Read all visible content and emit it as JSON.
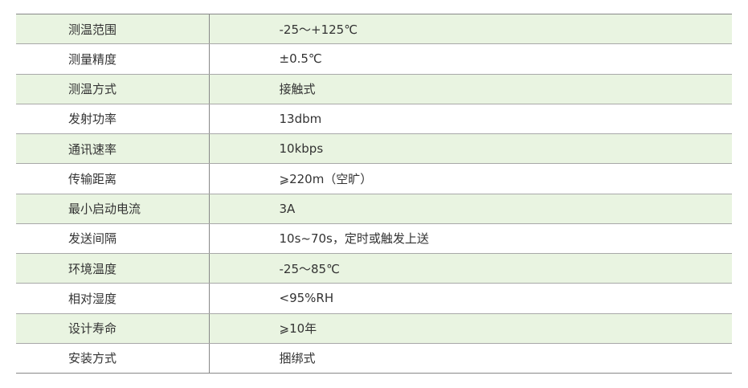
{
  "colors": {
    "alt_row": "#e9f4e1",
    "border": "#a8a8a8",
    "text": "#333333"
  },
  "rows": [
    {
      "label": "测温范围",
      "value": "-25～+125℃"
    },
    {
      "label": "测量精度",
      "value": "±0.5℃"
    },
    {
      "label": "测温方式",
      "value": "接触式"
    },
    {
      "label": "发射功率",
      "value": "13dbm"
    },
    {
      "label": "通讯速率",
      "value": "10kbps"
    },
    {
      "label": "传输距离",
      "value": "⩾220m（空旷）"
    },
    {
      "label": "最小启动电流",
      "value": "3A"
    },
    {
      "label": "发送间隔",
      "value": "10s~70s，定时或触发上送"
    },
    {
      "label": "环境温度",
      "value": "-25～85℃"
    },
    {
      "label": "相对湿度",
      "value": "<95%RH"
    },
    {
      "label": "设计寿命",
      "value": "⩾10年"
    },
    {
      "label": "安装方式",
      "value": "捆绑式"
    }
  ]
}
